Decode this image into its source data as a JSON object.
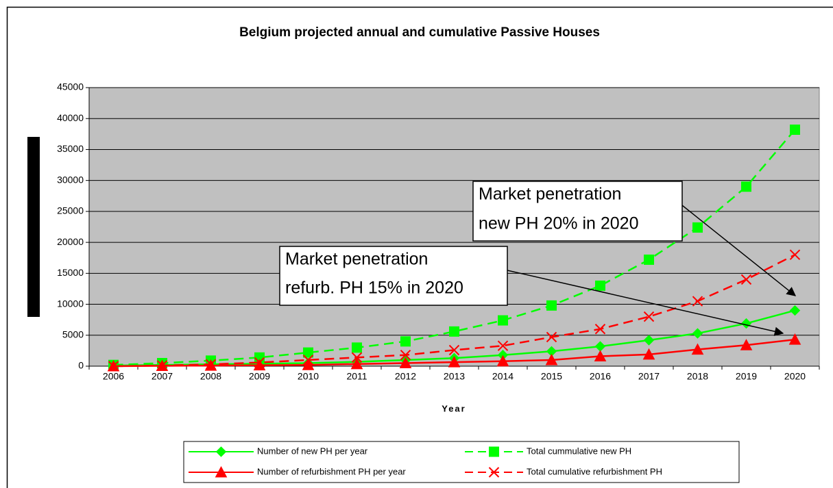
{
  "chart_data": {
    "type": "line",
    "title": "Belgium projected annual and cumulative Passive Houses",
    "x_label": "Year",
    "categories": [
      "2006",
      "2007",
      "2008",
      "2009",
      "2010",
      "2011",
      "2012",
      "2013",
      "2014",
      "2015",
      "2016",
      "2017",
      "2018",
      "2019",
      "2020"
    ],
    "ylim": [
      0,
      45000
    ],
    "yticks": [
      0,
      5000,
      10000,
      15000,
      20000,
      25000,
      30000,
      35000,
      40000,
      45000
    ],
    "grid": true,
    "background": "#c0c0c0",
    "series": [
      {
        "name": "Number of new PH per year",
        "color": "#00ff00",
        "dashed": false,
        "marker": "diamond",
        "values": [
          100,
          200,
          300,
          400,
          500,
          700,
          1000,
          1300,
          1800,
          2400,
          3200,
          4200,
          5300,
          6900,
          9000
        ]
      },
      {
        "name": "Total cummulative new PH",
        "color": "#00ff00",
        "dashed": true,
        "marker": "square",
        "values": [
          200,
          500,
          900,
          1400,
          2200,
          3000,
          4000,
          5600,
          7400,
          9800,
          13000,
          17200,
          22400,
          29000,
          38200
        ]
      },
      {
        "name": "Number of refurbishment PH per year",
        "color": "#ff0000",
        "dashed": false,
        "marker": "triangle",
        "values": [
          0,
          50,
          100,
          150,
          200,
          350,
          500,
          650,
          800,
          1000,
          1600,
          1900,
          2700,
          3400,
          4300
        ]
      },
      {
        "name": "Total cumulative refurbishment PH",
        "color": "#ff0000",
        "dashed": true,
        "marker": "x",
        "values": [
          0,
          100,
          300,
          600,
          1000,
          1400,
          1800,
          2600,
          3300,
          4700,
          6000,
          8000,
          10500,
          14000,
          18000
        ]
      }
    ],
    "annotations": [
      {
        "lines": [
          "Market penetration",
          "new PH 20% in 2020"
        ]
      },
      {
        "lines": [
          "Market penetration",
          "refurb. PH 15% in 2020"
        ]
      }
    ]
  }
}
